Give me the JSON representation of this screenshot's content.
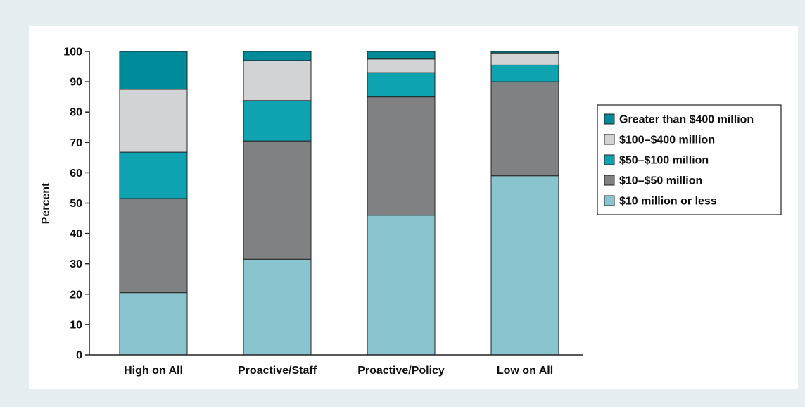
{
  "chart_data": {
    "type": "bar",
    "stacked": true,
    "ylabel": "Percent",
    "ylim": [
      0,
      100
    ],
    "yticks": [
      0,
      10,
      20,
      30,
      40,
      50,
      60,
      70,
      80,
      90,
      100
    ],
    "grid": false,
    "legend_placement": "right",
    "categories": [
      "High on All",
      "Proactive/Staff",
      "Proactive/Policy",
      "Low on All"
    ],
    "series": [
      {
        "name": "$10 million or less",
        "color": "#8ac5cf",
        "values": [
          20.5,
          31.5,
          46,
          59
        ]
      },
      {
        "name": "$10–$50 million",
        "color": "#808183",
        "values": [
          31,
          39,
          39,
          31
        ]
      },
      {
        "name": "$50–$100 million",
        "color": "#0fa3b1",
        "values": [
          15.3,
          13.3,
          8,
          5.5
        ]
      },
      {
        "name": "$100–$400 million",
        "color": "#d2d3d5",
        "values": [
          20.7,
          13.2,
          4.5,
          4
        ]
      },
      {
        "name": "Greater than $400 million",
        "color": "#008b9b",
        "values": [
          12.5,
          3,
          2.5,
          0.5
        ]
      }
    ]
  }
}
